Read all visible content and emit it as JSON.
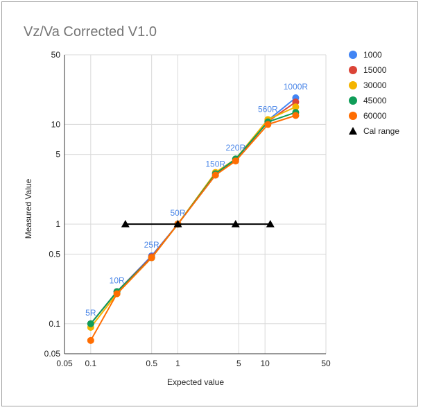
{
  "chart_data": {
    "type": "scatter",
    "title": "Vz/Va Corrected V1.0",
    "xlabel": "Expected value",
    "ylabel": "Measured Value",
    "xscale": "log",
    "yscale": "log",
    "xlim": [
      0.05,
      50
    ],
    "ylim": [
      0.05,
      50
    ],
    "x_ticks": [
      {
        "value": 0.05,
        "label": "0.05"
      },
      {
        "value": 0.1,
        "label": "0.1"
      },
      {
        "value": 0.5,
        "label": "0.5"
      },
      {
        "value": 1,
        "label": "1"
      },
      {
        "value": 5,
        "label": "5"
      },
      {
        "value": 10,
        "label": "10"
      },
      {
        "value": 50,
        "label": "50"
      }
    ],
    "y_ticks": [
      {
        "value": 0.05,
        "label": "0.05"
      },
      {
        "value": 0.1,
        "label": "0.1"
      },
      {
        "value": 0.5,
        "label": "0.5"
      },
      {
        "value": 1,
        "label": "1"
      },
      {
        "value": 5,
        "label": "5"
      },
      {
        "value": 10,
        "label": "10"
      },
      {
        "value": 50,
        "label": "50"
      }
    ],
    "grid": true,
    "legend_position": "right",
    "series": [
      {
        "name": "1000",
        "color": "#4285f4",
        "marker": "circle",
        "line": true,
        "x": [
          0.1,
          0.2,
          0.5,
          1,
          2.7,
          4.6,
          10.8,
          22.5
        ],
        "y": [
          0.1,
          0.21,
          0.48,
          1.0,
          3.1,
          4.5,
          11.0,
          18.5
        ]
      },
      {
        "name": "15000",
        "color": "#db4437",
        "marker": "circle",
        "line": true,
        "x": [
          0.1,
          0.2,
          0.5,
          1,
          2.7,
          4.6,
          10.8,
          22.5
        ],
        "y": [
          0.1,
          0.21,
          0.47,
          1.0,
          3.2,
          4.4,
          10.7,
          16.8
        ]
      },
      {
        "name": "30000",
        "color": "#f4b400",
        "marker": "circle",
        "line": true,
        "x": [
          0.1,
          0.2,
          0.5,
          1,
          2.7,
          4.6,
          10.8,
          22.5
        ],
        "y": [
          0.092,
          0.2,
          0.46,
          1.0,
          3.3,
          4.5,
          11.2,
          15.0
        ]
      },
      {
        "name": "45000",
        "color": "#0f9d58",
        "marker": "circle",
        "line": true,
        "x": [
          0.1,
          0.2,
          0.5,
          1,
          2.7,
          4.6,
          10.8,
          22.5
        ],
        "y": [
          0.1,
          0.21,
          0.46,
          1.0,
          3.2,
          4.5,
          10.6,
          13.2
        ]
      },
      {
        "name": "60000",
        "color": "#ff6d01",
        "marker": "circle",
        "line": true,
        "x": [
          0.1,
          0.2,
          0.5,
          1,
          2.7,
          4.6,
          10.8,
          22.5
        ],
        "y": [
          0.068,
          0.2,
          0.46,
          1.0,
          3.1,
          4.3,
          10.0,
          12.3
        ]
      },
      {
        "name": "Cal range",
        "color": "#000000",
        "marker": "triangle",
        "line": true,
        "x": [
          0.25,
          1,
          4.6,
          11.5
        ],
        "y": [
          1.0,
          1.0,
          1.0,
          1.0
        ]
      }
    ],
    "annotations": [
      {
        "text": "5R",
        "x": 0.1,
        "y": 0.1
      },
      {
        "text": "10R",
        "x": 0.2,
        "y": 0.21
      },
      {
        "text": "25R",
        "x": 0.5,
        "y": 0.48
      },
      {
        "text": "50R",
        "x": 1,
        "y": 1.0
      },
      {
        "text": "150R",
        "x": 2.7,
        "y": 3.1
      },
      {
        "text": "220R",
        "x": 4.6,
        "y": 4.5
      },
      {
        "text": "560R",
        "x": 10.8,
        "y": 11.0
      },
      {
        "text": "1000R",
        "x": 22.5,
        "y": 18.5
      }
    ]
  }
}
